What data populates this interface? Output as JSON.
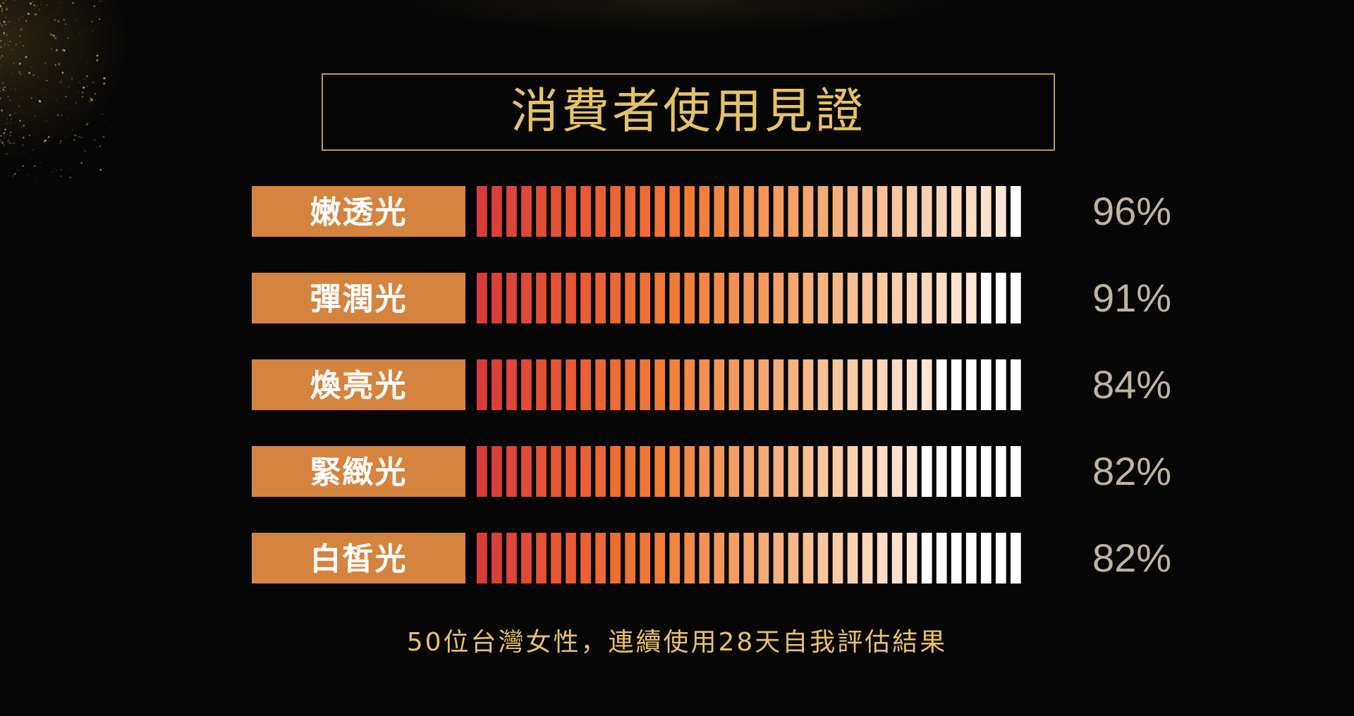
{
  "colors": {
    "label_bg": "#d5843f",
    "label_text": "#ffffff",
    "title_text": "#e6c267",
    "title_border": "#b8975a",
    "percent_text": "#bfb4a1",
    "segment_empty": "#ffffff",
    "gradient_stops": [
      "#d73c3c",
      "#e95a34",
      "#f07c36",
      "#f4a066",
      "#f8c79f",
      "#fce6d6"
    ]
  },
  "chart_data": {
    "type": "bar",
    "title": "消費者使用見證",
    "categories": [
      "嫩透光",
      "彈潤光",
      "煥亮光",
      "緊緻光",
      "白皙光"
    ],
    "values": [
      96,
      91,
      84,
      82,
      82
    ],
    "value_labels": [
      "96%",
      "91%",
      "84%",
      "82%",
      "82%"
    ],
    "xlim": [
      0,
      100
    ],
    "unit": "%",
    "segments_per_bar": 37,
    "caption": "50位台灣女性，連續使用28天自我評估結果"
  }
}
